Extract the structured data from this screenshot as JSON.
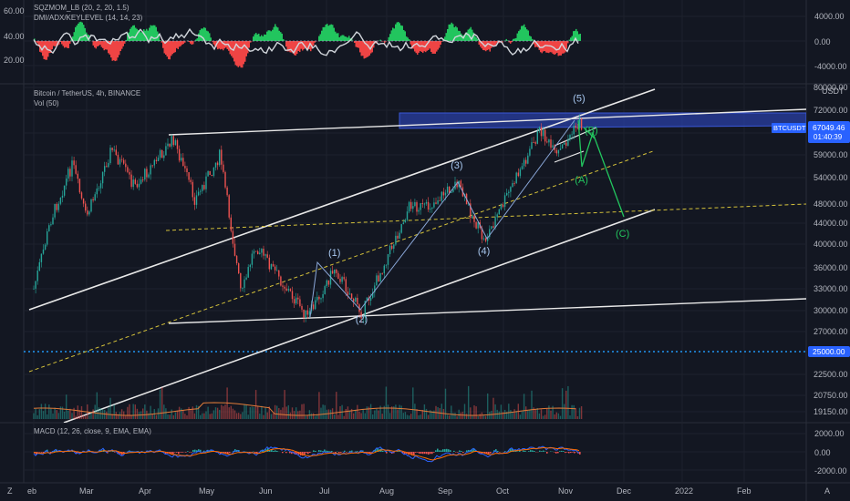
{
  "chart_data": {
    "type": "line",
    "symbol": "Bitcoin / TetherUS, 4h, BINANCE",
    "volume_label": "Vol (50)",
    "indicator_top": [
      "SQZMOM_LB (20, 2, 20, 1.5)",
      "DMI/ADX/KEYLEVEL (14, 14, 23)"
    ],
    "indicator_bottom": "MACD (12, 26, close, 9, EMA, EMA)",
    "price_axis_unit": "USDT",
    "price_ticks": [
      "80000.00",
      "72000.00",
      "66000.00",
      "59000.00",
      "54000.00",
      "48000.00",
      "44000.00",
      "40000.00",
      "36000.00",
      "33000.00",
      "30000.00",
      "27000.00",
      "22500.00",
      "20750.00",
      "19150.00"
    ],
    "top_left_ticks": [
      "60.00",
      "40.00",
      "20.00"
    ],
    "top_right_ticks": [
      "4000.00",
      "0.00",
      "-4000.00"
    ],
    "macd_ticks": [
      "2000.00",
      "0.00",
      "-2000.00"
    ],
    "x_ticks": [
      "Feb",
      "Mar",
      "Apr",
      "May",
      "Jun",
      "Jul",
      "Aug",
      "Sep",
      "Oct",
      "Nov",
      "Dec",
      "2022",
      "Feb"
    ],
    "x_start_label": "eb",
    "corner_left": "Z",
    "corner_right": "A",
    "last_price": {
      "symbol": "BTCUSDT",
      "price": "67049.46",
      "countdown": "01:40:39"
    },
    "level_line": {
      "value": 25000,
      "label": "25000.00"
    },
    "wave_labels": [
      {
        "text": "(1)",
        "x": "2021-07-06",
        "y": 38000,
        "color": "blue"
      },
      {
        "text": "(2)",
        "x": "2021-07-20",
        "y": 28300,
        "color": "blue"
      },
      {
        "text": "(3)",
        "x": "2021-09-07",
        "y": 56000,
        "color": "blue"
      },
      {
        "text": "(4)",
        "x": "2021-09-21",
        "y": 38300,
        "color": "blue"
      },
      {
        "text": "(5)",
        "x": "2021-11-09",
        "y": 75000,
        "color": "blue"
      },
      {
        "text": "(A)",
        "x": "2021-11-10",
        "y": 52800,
        "color": "green"
      },
      {
        "text": "(B)",
        "x": "2021-11-15",
        "y": 65800,
        "color": "green"
      },
      {
        "text": "(C)",
        "x": "2021-12-01",
        "y": 41400,
        "color": "green"
      }
    ],
    "price_series": [
      {
        "date": "2021-02-01",
        "price": 33000
      },
      {
        "date": "2021-02-10",
        "price": 45000
      },
      {
        "date": "2021-02-21",
        "price": 57000
      },
      {
        "date": "2021-02-28",
        "price": 45000
      },
      {
        "date": "2021-03-13",
        "price": 61000
      },
      {
        "date": "2021-03-25",
        "price": 52000
      },
      {
        "date": "2021-04-14",
        "price": 64000
      },
      {
        "date": "2021-04-25",
        "price": 49000
      },
      {
        "date": "2021-05-08",
        "price": 59000
      },
      {
        "date": "2021-05-19",
        "price": 32000
      },
      {
        "date": "2021-05-26",
        "price": 40000
      },
      {
        "date": "2021-06-22",
        "price": 29000
      },
      {
        "date": "2021-07-06",
        "price": 36000
      },
      {
        "date": "2021-07-20",
        "price": 29500
      },
      {
        "date": "2021-08-14",
        "price": 48000
      },
      {
        "date": "2021-08-22",
        "price": 47000
      },
      {
        "date": "2021-09-07",
        "price": 52900
      },
      {
        "date": "2021-09-21",
        "price": 40500
      },
      {
        "date": "2021-10-20",
        "price": 67000
      },
      {
        "date": "2021-10-28",
        "price": 58500
      },
      {
        "date": "2021-11-09",
        "price": 68800
      },
      {
        "date": "2021-11-11",
        "price": 67049
      }
    ],
    "projection": [
      {
        "date": "2021-11-09",
        "price": 68800
      },
      {
        "date": "2021-11-10",
        "price": 57000
      },
      {
        "date": "2021-11-15",
        "price": 64500
      },
      {
        "date": "2021-12-01",
        "price": 45000
      }
    ]
  }
}
